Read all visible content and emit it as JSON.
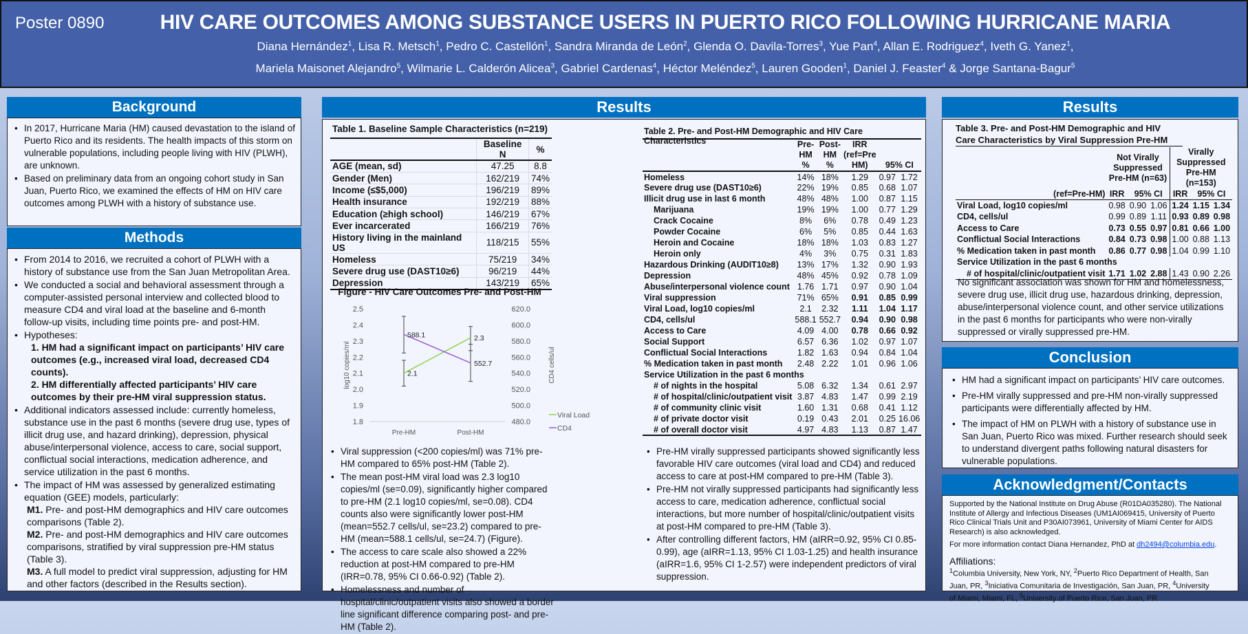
{
  "header": {
    "poster_id": "Poster 0890",
    "title": "HIV CARE OUTCOMES AMONG SUBSTANCE USERS IN PUERTO RICO FOLLOWING HURRICANE MARIA",
    "authors_line1": [
      {
        "name": "Diana Hernández",
        "sup": "1"
      },
      {
        "name": "Lisa R. Metsch",
        "sup": "1"
      },
      {
        "name": "Pedro C. Castellón",
        "sup": "1"
      },
      {
        "name": "Sandra Miranda de León",
        "sup": "2"
      },
      {
        "name": "Glenda O. Davila-Torres",
        "sup": "3"
      },
      {
        "name": "Yue Pan",
        "sup": "4"
      },
      {
        "name": "Allan E. Rodriguez",
        "sup": "4"
      },
      {
        "name": "Iveth G. Yanez",
        "sup": "1"
      }
    ],
    "authors_line2": [
      {
        "name": "Mariela Maisonet Alejandro",
        "sup": "5"
      },
      {
        "name": "Wilmarie L. Calderón Alicea",
        "sup": "3"
      },
      {
        "name": "Gabriel Cardenas",
        "sup": "4"
      },
      {
        "name": "Héctor Meléndez",
        "sup": "5"
      },
      {
        "name": "Lauren Gooden",
        "sup": "1"
      },
      {
        "name": "Daniel J. Feaster",
        "sup": "4"
      },
      {
        "name": "Jorge Santana-Bagur",
        "sup": "5"
      }
    ]
  },
  "background": {
    "heading": "Background",
    "bullets": [
      "In 2017, Hurricane Maria (HM) caused devastation to the island of Puerto Rico and its residents. The health impacts of this storm on vulnerable populations, including people living with HIV (PLWH), are unknown.",
      "Based on preliminary data from an ongoing cohort study in San Juan, Puerto Rico, we examined the effects of HM on HIV care outcomes among PLWH with a history of substance use."
    ]
  },
  "methods": {
    "heading": "Methods",
    "bullet1": "From 2014 to 2016, we recruited a cohort of PLWH with a history of substance use from the San Juan Metropolitan Area.",
    "bullet2": "We conducted a social and behavioral assessment through a computer-assisted personal interview and collected blood to measure CD4 and viral load at the baseline and 6-month follow-up visits, including time points pre- and post-HM.",
    "bullet3": "Hypotheses:",
    "hyp1": "1. HM had a significant impact on participants’ HIV care outcomes (e.g., increased viral load, decreased CD4 counts).",
    "hyp2": "2. HM differentially affected participants’ HIV care outcomes by their pre-HM viral suppression status.",
    "bullet4": "Additional indicators assessed include: currently homeless, substance use in the past 6 months (severe drug use, types of illicit drug use, and hazard drinking), depression, physical abuse/interpersonal violence, access to care, social support, conflictual social interactions, medication adherence, and service utilization in the past 6 months.",
    "bullet5": "The impact of HM was assessed by generalized estimating equation (GEE) models, particularly:",
    "models": [
      {
        "label": "M1.",
        "text": " Pre- and post-HM demographics and HIV care outcomes comparisons (Table 2)."
      },
      {
        "label": "M2.",
        "text": " Pre- and post-HM demographics and HIV care outcomes comparisons, stratified by viral suppression pre-HM status (Table 3)."
      },
      {
        "label": "M3.",
        "text": " A full model to predict viral suppression, adjusting for HM and other factors (described in the Results section)."
      }
    ]
  },
  "results": {
    "heading": "Results",
    "table1": {
      "caption": "Table 1. Baseline Sample Characteristics (n=219)",
      "headers": [
        "",
        "Baseline N",
        "%"
      ],
      "rows": [
        [
          "AGE (mean, sd)",
          "47.25",
          "8.8"
        ],
        [
          "Gender (Men)",
          "162/219",
          "74%"
        ],
        [
          "Income (≤$5,000)",
          "196/219",
          "89%"
        ],
        [
          "Health insurance",
          "192/219",
          "88%"
        ],
        [
          "Education (≥high school)",
          "146/219",
          "67%"
        ],
        [
          "Ever incarcerated",
          "166/219",
          "76%"
        ],
        [
          "History living in the mainland US",
          "118/215",
          "55%"
        ],
        [
          "Homeless",
          "75/219",
          "34%"
        ],
        [
          "Severe drug use (DAST10≥6)",
          "96/219",
          "44%"
        ],
        [
          "Depression",
          "143/219",
          "65%"
        ]
      ]
    },
    "table2": {
      "caption": "Table 2. Pre- and Post-HM Demographic and HIV Care Characteristics",
      "headers": [
        "",
        "Pre-HM %",
        "Post-HM %",
        "IRR (ref=Pre HM)",
        "95% CI"
      ],
      "rows": [
        {
          "label": "Homeless",
          "pre": "14%",
          "post": "18%",
          "irr": "1.29",
          "lo": "0.97",
          "hi": "1.72"
        },
        {
          "label": "Severe drug use (DAST10≥6)",
          "pre": "22%",
          "post": "19%",
          "irr": "0.85",
          "lo": "0.68",
          "hi": "1.07"
        },
        {
          "label": "Illicit drug use in last 6 month",
          "pre": "48%",
          "post": "48%",
          "irr": "1.00",
          "lo": "0.87",
          "hi": "1.15"
        },
        {
          "label": "Marijuana",
          "indent": true,
          "pre": "19%",
          "post": "19%",
          "irr": "1.00",
          "lo": "0.77",
          "hi": "1.29"
        },
        {
          "label": "Crack Cocaine",
          "indent": true,
          "pre": "8%",
          "post": "6%",
          "irr": "0.78",
          "lo": "0.49",
          "hi": "1.23"
        },
        {
          "label": "Powder Cocaine",
          "indent": true,
          "pre": "6%",
          "post": "5%",
          "irr": "0.85",
          "lo": "0.44",
          "hi": "1.63"
        },
        {
          "label": "Heroin and Cocaine",
          "indent": true,
          "pre": "18%",
          "post": "18%",
          "irr": "1.03",
          "lo": "0.83",
          "hi": "1.27"
        },
        {
          "label": "Heroin only",
          "indent": true,
          "pre": "4%",
          "post": "3%",
          "irr": "0.75",
          "lo": "0.31",
          "hi": "1.83"
        },
        {
          "label": "Hazardous Drinking (AUDIT10≥8)",
          "pre": "13%",
          "post": "17%",
          "irr": "1.32",
          "lo": "0.90",
          "hi": "1.93"
        },
        {
          "label": "Depression",
          "pre": "48%",
          "post": "45%",
          "irr": "0.92",
          "lo": "0.78",
          "hi": "1.09"
        },
        {
          "label": "Abuse/interpersonal violence count",
          "pre": "1.76",
          "post": "1.71",
          "irr": "0.97",
          "lo": "0.90",
          "hi": "1.04"
        },
        {
          "label": "Viral suppression",
          "pre": "71%",
          "post": "65%",
          "irr": "0.91",
          "lo": "0.85",
          "hi": "0.99",
          "sig": true
        },
        {
          "label": "Viral Load, log10 copies/ml",
          "pre": "2.1",
          "post": "2.32",
          "irr": "1.11",
          "lo": "1.04",
          "hi": "1.17",
          "sig": true
        },
        {
          "label": "CD4, cells/ul",
          "pre": "588.1",
          "post": "552.7",
          "irr": "0.94",
          "lo": "0.90",
          "hi": "0.98",
          "sig": true
        },
        {
          "label": "Access to Care",
          "pre": "4.09",
          "post": "4.00",
          "irr": "0.78",
          "lo": "0.66",
          "hi": "0.92",
          "sig": true
        },
        {
          "label": "Social Support",
          "pre": "6.57",
          "post": "6.36",
          "irr": "1.02",
          "lo": "0.97",
          "hi": "1.07"
        },
        {
          "label": "Conflictual Social Interactions",
          "pre": "1.82",
          "post": "1.63",
          "irr": "0.94",
          "lo": "0.84",
          "hi": "1.04"
        },
        {
          "label": "% Medication taken in past month",
          "pre": "2.48",
          "post": "2.22",
          "irr": "1.01",
          "lo": "0.96",
          "hi": "1.06"
        },
        {
          "label": "Service Utilization in the past 6 months",
          "section": true
        },
        {
          "label": "# of nights in the hospital",
          "indent": true,
          "pre": "5.08",
          "post": "6.32",
          "irr": "1.34",
          "lo": "0.61",
          "hi": "2.97"
        },
        {
          "label": "# of hospital/clinic/outpatient visit",
          "indent": true,
          "pre": "3.87",
          "post": "4.83",
          "irr": "1.47",
          "lo": "0.99",
          "hi": "2.19"
        },
        {
          "label": "# of community clinic visit",
          "indent": true,
          "pre": "1.60",
          "post": "1.31",
          "irr": "0.68",
          "lo": "0.41",
          "hi": "1.12"
        },
        {
          "label": "# of private doctor visit",
          "indent": true,
          "pre": "0.19",
          "post": "0.43",
          "irr": "2.01",
          "lo": "0.25",
          "hi": "16.06"
        },
        {
          "label": "# of overall doctor visit",
          "indent": true,
          "pre": "4.97",
          "post": "4.83",
          "irr": "1.13",
          "lo": "0.87",
          "hi": "1.47"
        }
      ]
    },
    "bullets_left": [
      "Viral suppression (<200 copies/ml) was 71% pre-HM compared to 65% post-HM (Table 2).",
      "The mean post-HM viral load was 2.3 log10 copies/ml (se=0.09), significantly higher compared to pre-HM (2.1 log10 copies/ml, se=0.08). CD4 counts also were significantly lower post-HM (mean=552.7 cells/ul, se=23.2) compared to pre-HM (mean=588.1 cells/ul, se=24.7) (Figure).",
      "The access to care scale also showed a 22% reduction at post-HM compared to pre-HM (IRR=0.78, 95% CI 0.66-0.92) (Table 2).",
      "Homelessness and number of hospital/clinic/outpatient visits also showed a border line significant difference comparing post- and pre-HM (Table 2)."
    ],
    "bullets_right": [
      "Pre-HM virally suppressed participants showed significantly less favorable HIV care outcomes (viral load and CD4) and reduced access to care at post-HM compared to pre-HM (Table 3).",
      "Pre-HM not virally suppressed participants had significantly less access to care, medication adherence, conflictual social interactions, but more number of hospital/clinic/outpatient visits at post-HM compared to pre-HM (Table 3).",
      "After controlling different factors, HM (aIRR=0.92, 95% CI 0.85-0.99), age (aIRR=1.13, 95% CI 1.03-1.25) and health insurance (aIRR=1.6, 95% CI 1-2.57) were independent predictors of viral suppression."
    ]
  },
  "results_right": {
    "heading": "Results",
    "table3": {
      "caption": "Table 3. Pre- and Post-HM Demographic and HIV Care Characteristics by Viral Suppression Pre-HM",
      "group1": "Not Virally Suppressed Pre-HM (n=63)",
      "group2": "Virally Suppressed Pre-HM (n=153)",
      "ref_label": "(ref=Pre-HM)",
      "irr_label": "IRR",
      "ci_label": "95% CI",
      "rows": [
        {
          "label": "Viral Load, log10 copies/ml",
          "g1": [
            "0.98",
            "0.90",
            "1.06"
          ],
          "g2": [
            "1.24",
            "1.15",
            "1.34"
          ],
          "sig1": false,
          "sig2": true
        },
        {
          "label": "CD4, cells/ul",
          "g1": [
            "0.99",
            "0.89",
            "1.11"
          ],
          "g2": [
            "0.93",
            "0.89",
            "0.98"
          ],
          "sig1": false,
          "sig2": true
        },
        {
          "label": "Access to Care",
          "g1": [
            "0.73",
            "0.55",
            "0.97"
          ],
          "g2": [
            "0.81",
            "0.66",
            "1.00"
          ],
          "sig1": true,
          "sig2": true
        },
        {
          "label": "Conflictual Social Interactions",
          "g1": [
            "0.84",
            "0.73",
            "0.98"
          ],
          "g2": [
            "1.00",
            "0.88",
            "1.13"
          ],
          "sig1": true,
          "sig2": false
        },
        {
          "label": "% Medication taken in past month",
          "g1": [
            "0.86",
            "0.77",
            "0.98"
          ],
          "g2": [
            "1.04",
            "0.99",
            "1.10"
          ],
          "sig1": true,
          "sig2": false
        },
        {
          "label": "Service Utilization in the past 6 months",
          "section": true
        },
        {
          "label": "# of hospital/clinic/outpatient visit",
          "indent": true,
          "g1": [
            "1.71",
            "1.02",
            "2.88"
          ],
          "g2": [
            "1.43",
            "0.90",
            "2.26"
          ],
          "sig1": true,
          "sig2": false
        }
      ]
    },
    "note": "No significant association was shown for HM and homelessness, severe drug use, illicit drug use, hazardous drinking, depression, abuse/interpersonal violence count, and other service utilizations in the past 6 months for participants who were non-virally suppressed or virally suppressed pre-HM."
  },
  "conclusion": {
    "heading": "Conclusion",
    "bullets": [
      "HM had a significant impact on participants’ HIV care outcomes.",
      "Pre-HM virally suppressed and pre-HM non-virally suppressed participants were differentially affected by HM.",
      "The impact of HM on PLWH with a history of substance use in San Juan, Puerto Rico was mixed. Further research should seek to understand divergent paths following natural disasters for vulnerable populations."
    ]
  },
  "acknowledgment": {
    "heading": "Acknowledgment/Contacts",
    "support": "Supported by the National Institute on Drug Abuse (R01DA035280).  The National Institute of Allergy and Infectious Diseases (UM1AI069415, University of Puerto Rico Clinical Trials Unit and P30AI073961, University of Miami Center for AIDS Research) is also acknowledged.",
    "contact_prefix": "For more information contact Diana Hernandez, PhD at ",
    "email": "dh2494@columbia.edu",
    "contact_suffix": ".",
    "affiliations_heading": "Affiliations:",
    "affiliations": [
      {
        "sup": "1",
        "text": "Columbia University, New York, NY, "
      },
      {
        "sup": "2",
        "text": "Puerto Rico Department of Health, San Juan, PR, "
      },
      {
        "sup": "3",
        "text": "Iniciativa Comunitaria de Investigación, San Juan, PR, "
      },
      {
        "sup": "4",
        "text": "University of Miami, Miami, FL, "
      },
      {
        "sup": "5",
        "text": "University of Puerto Rico, San Juan, PR"
      }
    ]
  },
  "chart_data": {
    "type": "line",
    "title": "Figure  - HIV Care Outcomes Pre- and Post-HM",
    "categories": [
      "Pre-HM",
      "Post-HM"
    ],
    "ylabel_left": "log10 copies/ml",
    "ylabel_right": "CD4 cells/ul",
    "ylim_left": [
      1.8,
      2.5
    ],
    "yticks_left": [
      "2.5",
      "2.4",
      "2.3",
      "2.2",
      "2.1",
      "2.0",
      "1.9",
      "1.8"
    ],
    "ylim_right": [
      480,
      620
    ],
    "yticks_right": [
      "620.0",
      "600.0",
      "580.0",
      "560.0",
      "540.0",
      "520.0",
      "500.0",
      "480.0"
    ],
    "legend_position": "bottom-right",
    "series": [
      {
        "name": "Viral Load",
        "axis": "left",
        "color": "#92d050",
        "values": [
          2.1,
          2.32
        ],
        "labels": [
          "2.1",
          "2.3"
        ],
        "err_low": [
          2.02,
          2.24
        ],
        "err_high": [
          2.18,
          2.39
        ]
      },
      {
        "name": "CD4",
        "axis": "right",
        "color": "#9b59d6",
        "values": [
          588.1,
          552.7
        ],
        "labels": [
          "588.1",
          "552.7"
        ],
        "err_low": [
          565.1,
          529.8
        ],
        "err_high": [
          610.6,
          575.9
        ]
      }
    ]
  }
}
